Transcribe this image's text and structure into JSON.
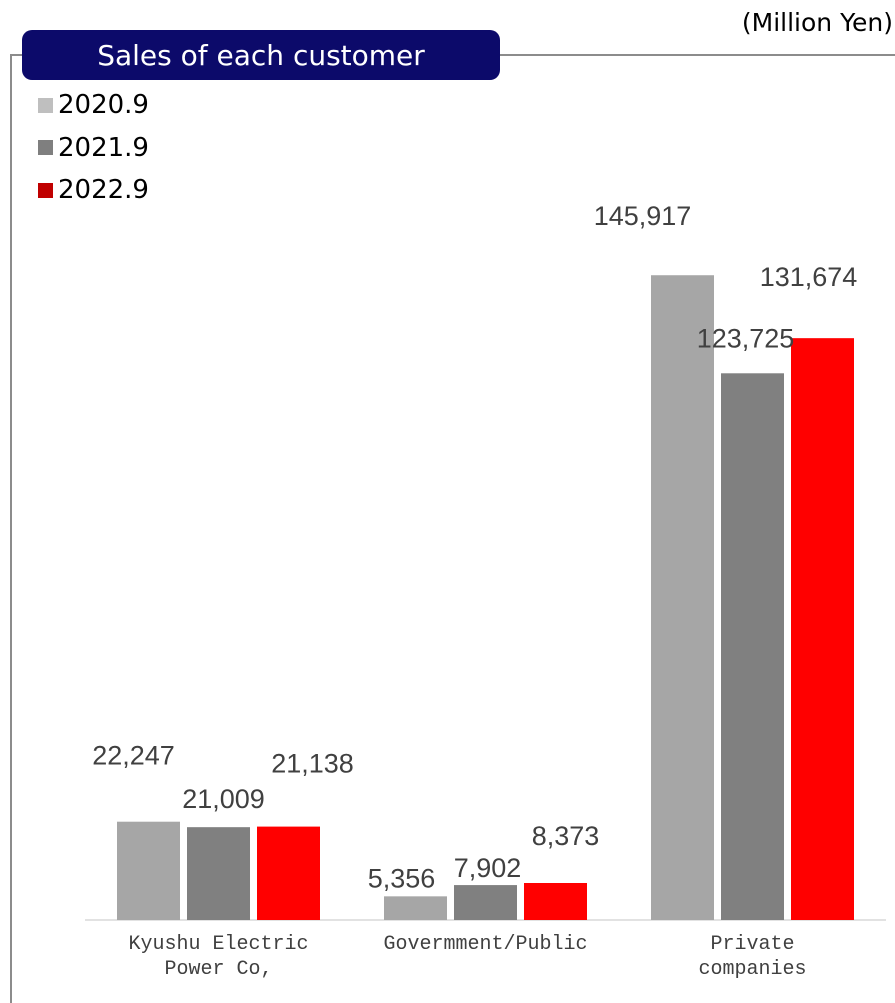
{
  "colors": {
    "title_background": "#0c0a6a",
    "title_text": "#ffffff",
    "frame_line": "#8c8c8c",
    "axis_line": "#d9d9d9",
    "label_text": "#404040"
  },
  "chart_data": {
    "type": "bar",
    "title": "Sales of each customer",
    "unit": "(Million Yen)",
    "categories": [
      "Kyushu Electric Power Co,",
      "Govermment/Public",
      "Private companies"
    ],
    "series": [
      {
        "name": "2020.9",
        "values": [
          22247,
          5356,
          145917
        ],
        "color": "#a6a6a6",
        "legend_color": "#bfbfbf"
      },
      {
        "name": "2021.9",
        "values": [
          21009,
          7902,
          123725
        ],
        "color": "#808080",
        "legend_color": "#7f7f7f"
      },
      {
        "name": "2022.9",
        "values": [
          21138,
          8373,
          131674
        ],
        "color": "#ff0000",
        "legend_color": "#c00000"
      }
    ],
    "ylim": [
      0,
      160000
    ],
    "grid": false,
    "y_axis_visible": false,
    "data_labels": true,
    "legend": "top-left"
  }
}
